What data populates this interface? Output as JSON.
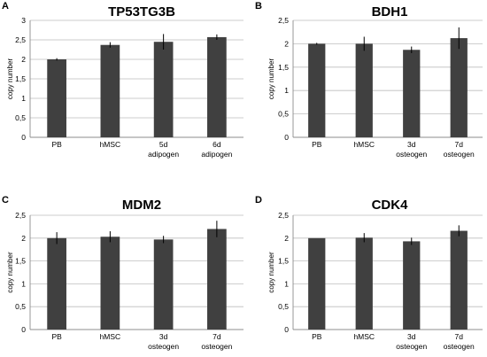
{
  "chart_data": [
    {
      "type": "bar",
      "panel": "A",
      "title": "TP53TG3B",
      "ylabel": "copy number",
      "ylim": [
        0,
        3
      ],
      "yticks": [
        "0",
        "0,5",
        "1",
        "1,5",
        "2",
        "2,5",
        "3"
      ],
      "categories": [
        [
          "PB"
        ],
        [
          "hMSC"
        ],
        [
          "5d",
          "adipogen"
        ],
        [
          "6d",
          "adipogen"
        ]
      ],
      "values": [
        2.0,
        2.37,
        2.45,
        2.57
      ],
      "errors": [
        0.03,
        0.07,
        0.2,
        0.07
      ],
      "grid": true,
      "color": "#404040"
    },
    {
      "type": "bar",
      "panel": "B",
      "title": "BDH1",
      "ylabel": "copy number",
      "ylim": [
        0,
        2.5
      ],
      "yticks": [
        "0",
        "0,5",
        "1",
        "1,5",
        "2",
        "2,5"
      ],
      "categories": [
        [
          "PB"
        ],
        [
          "hMSC"
        ],
        [
          "3d",
          "osteogen"
        ],
        [
          "7d",
          "osteogen"
        ]
      ],
      "values": [
        2.0,
        2.0,
        1.87,
        2.12
      ],
      "errors": [
        0.02,
        0.15,
        0.07,
        0.23
      ],
      "grid": true,
      "color": "#404040"
    },
    {
      "type": "bar",
      "panel": "C",
      "title": "MDM2",
      "ylabel": "copy number",
      "ylim": [
        0,
        2.5
      ],
      "yticks": [
        "0",
        "0,5",
        "1",
        "1,5",
        "2",
        "2,5"
      ],
      "categories": [
        [
          "PB"
        ],
        [
          "hMSC"
        ],
        [
          "3d",
          "osteogen"
        ],
        [
          "7d",
          "osteogen"
        ]
      ],
      "values": [
        2.0,
        2.03,
        1.97,
        2.2
      ],
      "errors": [
        0.13,
        0.12,
        0.08,
        0.18
      ],
      "grid": true,
      "color": "#404040"
    },
    {
      "type": "bar",
      "panel": "D",
      "title": "CDK4",
      "ylabel": "copy number",
      "ylim": [
        0,
        2.5
      ],
      "yticks": [
        "0",
        "0,5",
        "1",
        "1,5",
        "2",
        "2,5"
      ],
      "categories": [
        [
          "PB"
        ],
        [
          "hMSC"
        ],
        [
          "3d",
          "osteogen"
        ],
        [
          "7d",
          "osteogen"
        ]
      ],
      "values": [
        2.0,
        2.01,
        1.93,
        2.16
      ],
      "errors": [
        0.0,
        0.1,
        0.08,
        0.12
      ],
      "grid": true,
      "color": "#404040"
    }
  ]
}
